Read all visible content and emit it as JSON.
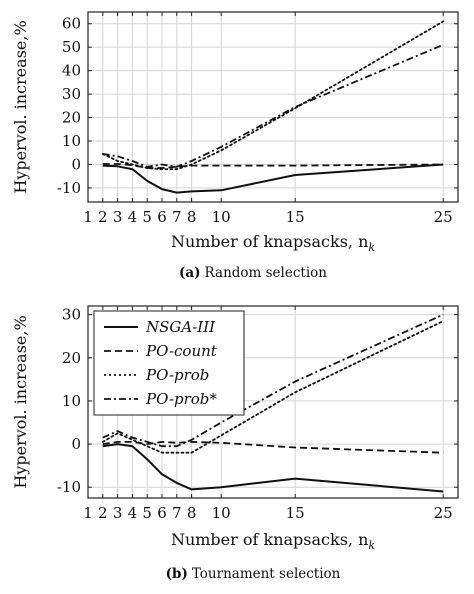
{
  "chart_data": [
    {
      "type": "line",
      "caption_label": "(a)",
      "caption_text": "Random selection",
      "xlabel": "Number of knapsacks, n",
      "xlabel_sub": "k",
      "ylabel": "Hypervol. increase,%",
      "xlim": [
        1,
        26
      ],
      "ylim": [
        -16,
        65
      ],
      "xticks": [
        1,
        2,
        3,
        4,
        5,
        6,
        7,
        8,
        10,
        15,
        25
      ],
      "yticks": [
        -10,
        0,
        10,
        20,
        30,
        40,
        50,
        60
      ],
      "grid": true,
      "legend": false,
      "series": [
        {
          "style": "solid",
          "x": [
            2,
            3,
            4,
            5,
            6,
            7,
            8,
            10,
            15,
            25
          ],
          "y": [
            -0.5,
            -0.8,
            -2,
            -7,
            -10.5,
            -12,
            -11.5,
            -11,
            -4.5,
            0
          ]
        },
        {
          "style": "dashed",
          "x": [
            2,
            3,
            4,
            5,
            6,
            7,
            8,
            10,
            15,
            25
          ],
          "y": [
            0.2,
            0.2,
            -0.3,
            -1.5,
            -1.5,
            -1,
            -0.5,
            -0.5,
            -0.5,
            0
          ]
        },
        {
          "style": "dotted",
          "x": [
            2,
            3,
            4,
            5,
            6,
            7,
            8,
            10,
            15,
            25
          ],
          "y": [
            4.5,
            1.5,
            0,
            -1.5,
            -2,
            -2,
            0,
            6,
            24,
            61
          ]
        },
        {
          "style": "dashdot",
          "x": [
            2,
            3,
            4,
            5,
            6,
            7,
            8,
            10,
            15,
            25
          ],
          "y": [
            4.5,
            3.5,
            1.5,
            -1,
            0,
            -1,
            1.5,
            7.5,
            24.5,
            51
          ]
        }
      ]
    },
    {
      "type": "line",
      "caption_label": "(b)",
      "caption_text": "Tournament selection",
      "xlabel": "Number of knapsacks, n",
      "xlabel_sub": "k",
      "ylabel": "Hypervol. increase,%",
      "xlim": [
        1,
        26
      ],
      "ylim": [
        -12.5,
        32
      ],
      "xticks": [
        1,
        2,
        3,
        4,
        5,
        6,
        7,
        8,
        10,
        15,
        25
      ],
      "yticks": [
        -10,
        0,
        10,
        20,
        30
      ],
      "grid": true,
      "legend": "top-left",
      "series": [
        {
          "name": "NSGA-III",
          "style": "solid",
          "x": [
            2,
            3,
            4,
            5,
            6,
            7,
            8,
            10,
            15,
            25
          ],
          "y": [
            -0.5,
            0,
            -0.5,
            -3.5,
            -7,
            -9,
            -10.5,
            -10,
            -8,
            -11
          ]
        },
        {
          "name": "PO-count",
          "style": "dashed",
          "x": [
            2,
            3,
            4,
            5,
            6,
            7,
            8,
            10,
            15,
            25
          ],
          "y": [
            0,
            0.5,
            0.5,
            0,
            0.5,
            0.3,
            0.5,
            0.3,
            -0.8,
            -2
          ]
        },
        {
          "name": "PO-prob",
          "style": "dotted",
          "x": [
            2,
            3,
            4,
            5,
            6,
            7,
            8,
            10,
            15,
            25
          ],
          "y": [
            0.5,
            2.5,
            1,
            -0.5,
            -2,
            -2,
            -2,
            2,
            12,
            28.5
          ]
        },
        {
          "name": "PO-prob*",
          "style": "dashdot",
          "x": [
            2,
            3,
            4,
            5,
            6,
            7,
            8,
            10,
            15,
            25
          ],
          "y": [
            1.5,
            3,
            1.5,
            0.5,
            -0.5,
            -0.5,
            1,
            5,
            14.5,
            30
          ]
        }
      ]
    }
  ]
}
